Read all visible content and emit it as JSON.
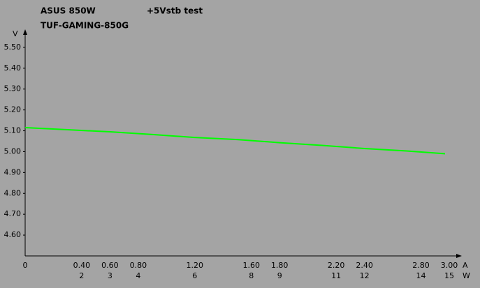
{
  "chart_data": {
    "type": "line",
    "title": "+5Vstb test",
    "brand": "ASUS 850W",
    "model": "TUF-GAMING-850G",
    "y_unit": "V",
    "x_unit": "A",
    "x2_unit": "W",
    "x": [
      0,
      0.3,
      0.6,
      0.9,
      1.2,
      1.5,
      1.8,
      2.1,
      2.4,
      2.7,
      2.97
    ],
    "series": [
      {
        "name": "+5Vstb",
        "color": "#00ff00",
        "values": [
          5.115,
          5.105,
          5.095,
          5.082,
          5.068,
          5.058,
          5.043,
          5.03,
          5.015,
          5.003,
          4.99
        ]
      }
    ],
    "xlim": [
      0,
      3.0
    ],
    "xticks": [
      0,
      0.4,
      0.6,
      0.8,
      1.2,
      1.6,
      1.8,
      2.2,
      2.4,
      2.8,
      3.0
    ],
    "xtick_labels": [
      "0",
      "0.40",
      "0.60",
      "0.80",
      "1.20",
      "1.60",
      "1.80",
      "2.20",
      "2.40",
      "2.80",
      "3.00"
    ],
    "x2lim": [
      0,
      15
    ],
    "x2ticks": [
      2,
      3,
      4,
      6,
      8,
      9,
      11,
      12,
      14,
      15
    ],
    "ylim": [
      4.5,
      5.6
    ],
    "yticks": [
      {
        "value": 4.6,
        "label": "4.60"
      },
      {
        "value": 4.7,
        "label": "4.70"
      },
      {
        "value": 4.8,
        "label": "4.80"
      },
      {
        "value": 4.9,
        "label": "4.90"
      },
      {
        "value": 5.0,
        "label": "5.00"
      },
      {
        "value": 5.1,
        "label": "5.10"
      },
      {
        "value": 5.2,
        "label": "5.20"
      },
      {
        "value": 5.3,
        "label": "5.30"
      },
      {
        "value": 5.4,
        "label": "5.40"
      },
      {
        "value": 5.5,
        "label": "5.50"
      }
    ]
  }
}
